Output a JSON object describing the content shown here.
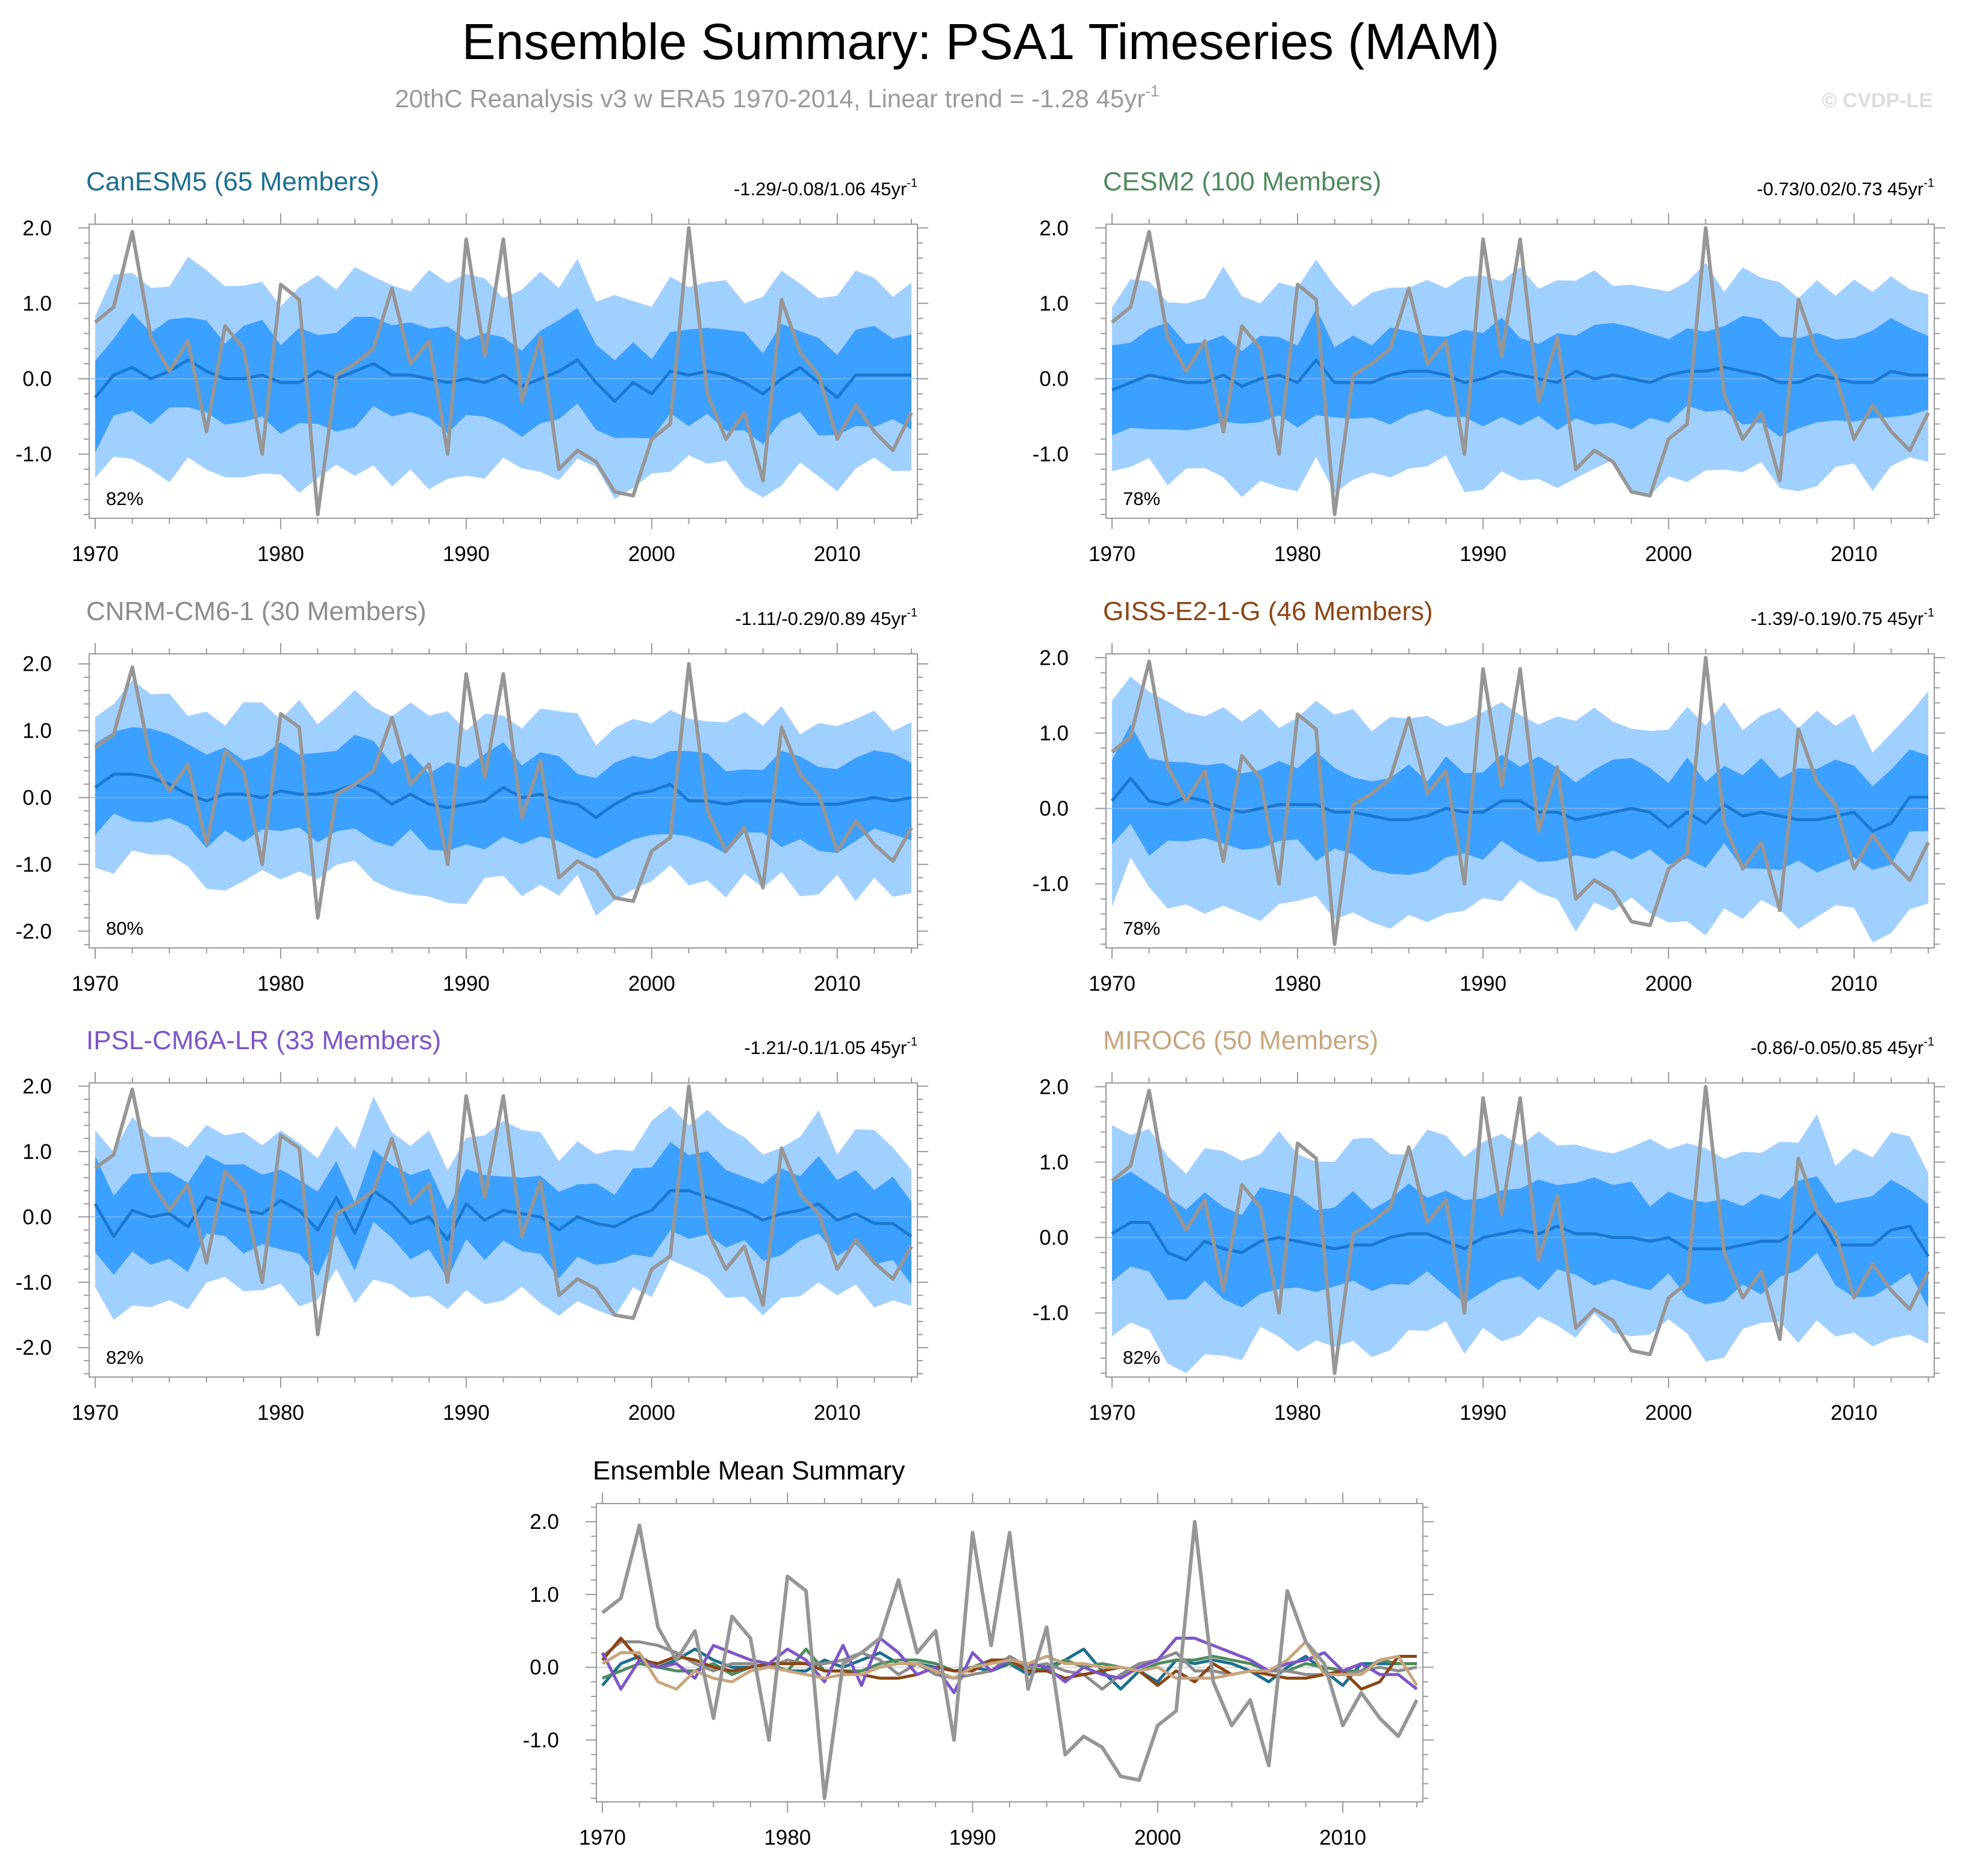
{
  "title": "Ensemble Summary: PSA1 Timeseries (MAM)",
  "subtitle": "20thC Reanalysis v3 w ERA5 1970-2014, Linear trend = -1.28 45yr",
  "subtitle_sup": "-1",
  "watermark": "© CVDP-LE",
  "unit_text": "45yr",
  "unit_sup": "-1",
  "colors": {
    "outer_band": "#a0d0ff",
    "inner_band": "#3ca0ff",
    "ens_mean_line": "#1a78d0",
    "obs_line": "#969696",
    "zero_line": "#c8c8c8",
    "frame": "#9a9a9a"
  },
  "chart_data": [
    {
      "type": "area",
      "title": "CanESM5 (65 Members)",
      "title_color": "#1b6f8f",
      "trend_range": "-1.29/-0.08/1.06",
      "percent": "82%",
      "x": [
        1970,
        2014
      ],
      "ylim": [
        -1.85,
        2.05
      ],
      "yticks": [
        2.0,
        1.0,
        0.0,
        -1.0
      ],
      "ytick_labels": [
        "2.0",
        "1.0",
        "0.0",
        "-1.0"
      ],
      "xticks": [
        1970,
        1980,
        1990,
        2000,
        2010
      ],
      "xtick_labels": [
        "1970",
        "1980",
        "1990",
        "2000",
        "2010"
      ],
      "ens_mean": [
        -0.25,
        0.05,
        0.15,
        0.0,
        0.1,
        0.25,
        0.1,
        0.0,
        0.0,
        0.05,
        -0.05,
        -0.05,
        0.1,
        0.0,
        0.1,
        0.2,
        0.05,
        0.05,
        0.0,
        -0.05,
        0.0,
        -0.05,
        0.05,
        -0.1,
        0.0,
        0.1,
        0.25,
        -0.05,
        -0.3,
        -0.05,
        -0.2,
        0.1,
        0.05,
        0.1,
        0.05,
        -0.05,
        -0.2,
        0.0,
        0.15,
        -0.05,
        -0.25,
        0.05,
        0.05,
        0.05,
        0.05
      ]
    },
    {
      "type": "area",
      "title": "CESM2 (100 Members)",
      "title_color": "#4e8b5c",
      "trend_range": "-0.73/0.02/0.73",
      "percent": "78%",
      "x": [
        1970,
        2014
      ],
      "ylim": [
        -1.85,
        2.05
      ],
      "yticks": [
        2.0,
        1.0,
        0.0,
        -1.0
      ],
      "ytick_labels": [
        "2.0",
        "1.0",
        "0.0",
        "-1.0"
      ],
      "xticks": [
        1970,
        1980,
        1990,
        2000,
        2010
      ],
      "xtick_labels": [
        "1970",
        "1980",
        "1990",
        "2000",
        "2010"
      ],
      "ens_mean": [
        -0.15,
        -0.05,
        0.05,
        0.0,
        -0.05,
        -0.05,
        0.05,
        -0.1,
        0.0,
        0.05,
        -0.05,
        0.25,
        -0.05,
        -0.05,
        -0.05,
        0.05,
        0.1,
        0.1,
        0.05,
        -0.05,
        0.0,
        0.1,
        0.05,
        0.0,
        -0.05,
        0.1,
        0.0,
        0.05,
        0.0,
        -0.05,
        0.05,
        0.1,
        0.1,
        0.15,
        0.1,
        0.05,
        -0.05,
        -0.05,
        0.05,
        0.0,
        -0.05,
        -0.05,
        0.1,
        0.05,
        0.05
      ]
    },
    {
      "type": "area",
      "title": "CNRM-CM6-1 (30 Members)",
      "title_color": "#8c8c8c",
      "trend_range": "-1.11/-0.29/0.89",
      "percent": "80%",
      "x": [
        1970,
        2014
      ],
      "ylim": [
        -2.25,
        2.15
      ],
      "yticks": [
        2.0,
        1.0,
        0.0,
        -1.0,
        -2.0
      ],
      "ytick_labels": [
        "2.0",
        "1.0",
        "0.0",
        "-1.0",
        "-2.0"
      ],
      "xticks": [
        1970,
        1980,
        1990,
        2000,
        2010
      ],
      "xtick_labels": [
        "1970",
        "1980",
        "1990",
        "2000",
        "2010"
      ],
      "ens_mean": [
        0.15,
        0.35,
        0.35,
        0.3,
        0.2,
        0.05,
        -0.05,
        0.05,
        0.05,
        0.0,
        0.1,
        0.05,
        0.05,
        0.1,
        0.2,
        0.1,
        -0.1,
        0.05,
        -0.1,
        -0.15,
        -0.1,
        -0.05,
        0.15,
        0.0,
        0.05,
        -0.05,
        -0.1,
        -0.3,
        -0.1,
        0.05,
        0.1,
        0.2,
        -0.05,
        -0.05,
        -0.1,
        -0.05,
        -0.05,
        -0.05,
        -0.1,
        -0.1,
        -0.1,
        -0.05,
        0.0,
        -0.05,
        0.0
      ]
    },
    {
      "type": "area",
      "title": "GISS-E2-1-G (46 Members)",
      "title_color": "#8b4513",
      "trend_range": "-1.39/-0.19/0.75",
      "percent": "78%",
      "x": [
        1970,
        2014
      ],
      "ylim": [
        -1.85,
        2.05
      ],
      "yticks": [
        2.0,
        1.0,
        0.0,
        -1.0
      ],
      "ytick_labels": [
        "2.0",
        "1.0",
        "0.0",
        "-1.0"
      ],
      "xticks": [
        1970,
        1980,
        1990,
        2000,
        2010
      ],
      "xtick_labels": [
        "1970",
        "1980",
        "1990",
        "2000",
        "2010"
      ],
      "ens_mean": [
        0.1,
        0.4,
        0.1,
        0.05,
        0.15,
        0.1,
        0.0,
        -0.05,
        0.0,
        0.05,
        0.05,
        0.05,
        -0.05,
        -0.05,
        -0.1,
        -0.15,
        -0.15,
        -0.1,
        0.0,
        -0.05,
        -0.05,
        0.1,
        0.1,
        -0.05,
        -0.05,
        -0.15,
        -0.1,
        -0.05,
        0.0,
        -0.05,
        -0.25,
        -0.05,
        -0.2,
        0.05,
        -0.1,
        -0.05,
        -0.1,
        -0.15,
        -0.15,
        -0.1,
        -0.05,
        -0.3,
        -0.2,
        0.15,
        0.15
      ]
    },
    {
      "type": "area",
      "title": "IPSL-CM6A-LR (33 Members)",
      "title_color": "#7d55c7",
      "trend_range": "-1.21/-0.1/1.05",
      "percent": "82%",
      "x": [
        1970,
        2014
      ],
      "ylim": [
        -2.45,
        2.05
      ],
      "yticks": [
        2.0,
        1.0,
        0.0,
        -1.0,
        -2.0
      ],
      "ytick_labels": [
        "2.0",
        "1.0",
        "0.0",
        "-1.0",
        "-2.0"
      ],
      "xticks": [
        1970,
        1980,
        1990,
        2000,
        2010
      ],
      "xtick_labels": [
        "1970",
        "1980",
        "1990",
        "2000",
        "2010"
      ],
      "ens_mean": [
        0.2,
        -0.3,
        0.1,
        0.0,
        0.05,
        -0.15,
        0.3,
        0.2,
        0.1,
        0.05,
        0.25,
        0.1,
        -0.2,
        0.3,
        -0.25,
        0.4,
        0.2,
        -0.1,
        0.0,
        -0.35,
        0.2,
        -0.05,
        0.1,
        0.05,
        0.0,
        -0.2,
        0.0,
        -0.1,
        -0.15,
        0.0,
        0.1,
        0.4,
        0.4,
        0.3,
        0.2,
        0.1,
        -0.05,
        0.05,
        0.1,
        0.2,
        -0.05,
        0.05,
        -0.1,
        -0.1,
        -0.3
      ]
    },
    {
      "type": "area",
      "title": "MIROC6 (50 Members)",
      "title_color": "#c8a57d",
      "trend_range": "-0.86/-0.05/0.85",
      "percent": "82%",
      "x": [
        1970,
        2014
      ],
      "ylim": [
        -1.85,
        2.05
      ],
      "yticks": [
        2.0,
        1.0,
        0.0,
        -1.0
      ],
      "ytick_labels": [
        "2.0",
        "1.0",
        "0.0",
        "-1.0"
      ],
      "xticks": [
        1970,
        1980,
        1990,
        2000,
        2010
      ],
      "xtick_labels": [
        "1970",
        "1980",
        "1990",
        "2000",
        "2010"
      ],
      "ens_mean": [
        0.05,
        0.2,
        0.2,
        -0.2,
        -0.3,
        -0.05,
        -0.15,
        -0.2,
        -0.05,
        0.0,
        -0.05,
        -0.1,
        -0.15,
        -0.1,
        -0.1,
        0.0,
        0.05,
        0.05,
        -0.05,
        -0.15,
        0.0,
        0.05,
        0.1,
        0.05,
        0.15,
        0.05,
        0.05,
        0.0,
        0.0,
        -0.05,
        0.0,
        -0.15,
        -0.15,
        -0.15,
        -0.1,
        -0.05,
        -0.05,
        0.1,
        0.35,
        -0.1,
        -0.1,
        -0.1,
        0.1,
        0.15,
        -0.25
      ]
    },
    {
      "type": "line",
      "title": "Ensemble Mean Summary",
      "x": [
        1970,
        2014
      ],
      "ylim": [
        -1.85,
        2.25
      ],
      "yticks": [
        2.0,
        1.0,
        0.0,
        -1.0
      ],
      "ytick_labels": [
        "2.0",
        "1.0",
        "0.0",
        "-1.0"
      ],
      "xticks": [
        1970,
        1980,
        1990,
        2000,
        2010
      ],
      "xtick_labels": [
        "1970",
        "1980",
        "1990",
        "2000",
        "2010"
      ],
      "series": [
        {
          "name": "CanESM5",
          "color": "#1b6f8f"
        },
        {
          "name": "CESM2",
          "color": "#4e8b5c"
        },
        {
          "name": "CNRM-CM6-1",
          "color": "#8c8c8c"
        },
        {
          "name": "GISS-E2-1-G",
          "color": "#8b4513"
        },
        {
          "name": "IPSL-CM6A-LR",
          "color": "#7d55c7"
        },
        {
          "name": "MIROC6",
          "color": "#c8a57d"
        },
        {
          "name": "20thC Reanalysis v3 w ERA5",
          "color": "#969696"
        }
      ]
    }
  ],
  "observations": {
    "name": "20thC Reanalysis v3 w ERA5",
    "years": [
      1970,
      2014
    ],
    "values": [
      0.75,
      0.95,
      1.95,
      0.55,
      0.1,
      0.5,
      -0.7,
      0.7,
      0.4,
      -1.0,
      1.25,
      1.05,
      -1.8,
      0.05,
      0.2,
      0.4,
      1.2,
      0.2,
      0.5,
      -1.0,
      1.85,
      0.3,
      1.85,
      -0.3,
      0.55,
      -1.2,
      -0.95,
      -1.1,
      -1.5,
      -1.55,
      -0.8,
      -0.6,
      2.0,
      -0.2,
      -0.8,
      -0.45,
      -1.35,
      1.05,
      0.35,
      0.05,
      -0.8,
      -0.35,
      -0.7,
      -0.95,
      -0.45
    ]
  }
}
